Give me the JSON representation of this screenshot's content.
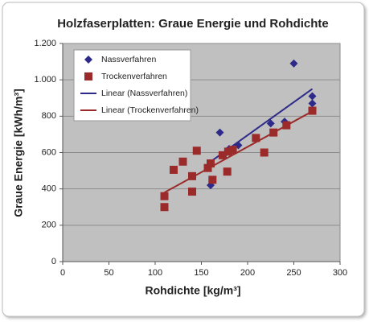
{
  "chart_data": {
    "type": "scatter",
    "title": "Holzfaserplatten: Graue Energie und Rohdichte",
    "x_label": "Rohdichte [kg/m³]",
    "y_label": "Graue Energie [kWh/m³]",
    "xlim": [
      0,
      300
    ],
    "xticks": [
      0,
      50,
      100,
      150,
      200,
      250,
      300
    ],
    "ylim": [
      0,
      1200
    ],
    "yticks": [
      0,
      200,
      400,
      600,
      800,
      {
        "value": 1000,
        "label": "1.000"
      },
      {
        "value": 1200,
        "label": "1.200"
      }
    ],
    "grid": true,
    "legend": "top-left",
    "series": [
      {
        "name": "Nassverfahren",
        "marker": "diamond",
        "color": "#2e2a8a",
        "x": [
          160,
          170,
          180,
          190,
          225,
          240,
          250,
          270,
          270
        ],
        "values": [
          420,
          710,
          620,
          640,
          760,
          770,
          1090,
          910,
          870
        ]
      },
      {
        "name": "Trockenverfahren",
        "marker": "square",
        "color": "#9b2b2b",
        "x": [
          110,
          110,
          120,
          130,
          145,
          140,
          140,
          157,
          160,
          162,
          173,
          179,
          178,
          184,
          209,
          218,
          228,
          242,
          270
        ],
        "values": [
          360,
          300,
          505,
          550,
          610,
          470,
          385,
          515,
          540,
          450,
          585,
          605,
          495,
          615,
          680,
          600,
          710,
          750,
          830
        ]
      },
      {
        "name": "Linear (Nassverfahren)",
        "marker": "line",
        "color": "#2e2a8a",
        "x": [
          160,
          270
        ],
        "values": [
          550,
          950
        ]
      },
      {
        "name": "Linear (Trockenverfahren)",
        "marker": "line",
        "color": "#9b2b2b",
        "x": [
          110,
          270
        ],
        "values": [
          380,
          827
        ]
      }
    ]
  }
}
